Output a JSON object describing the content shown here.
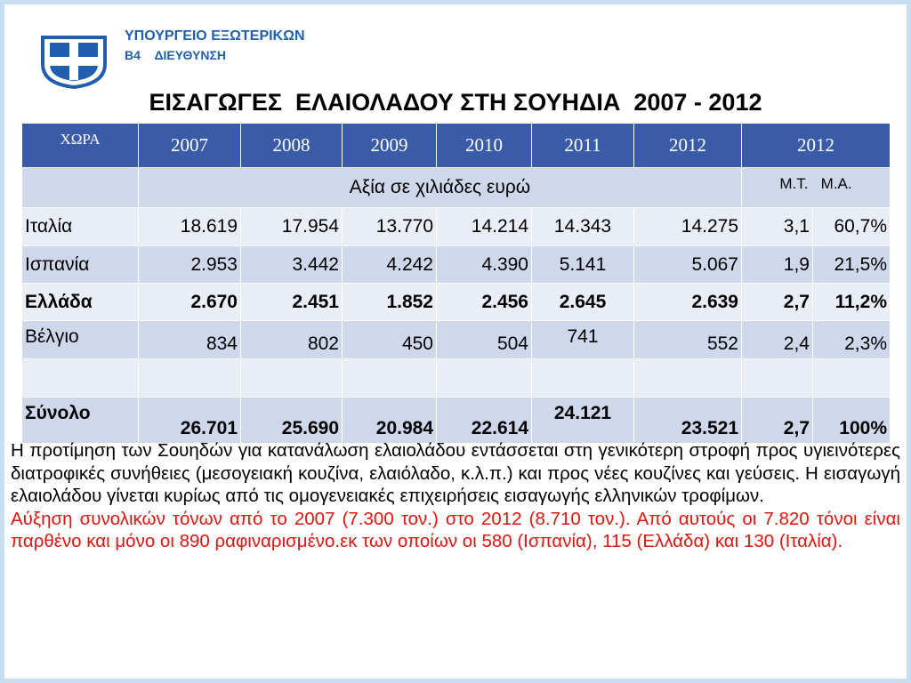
{
  "header": {
    "ministry": "ΥΠΟΥΡΓΕΙΟ ΕΞΩΤΕΡΙΚΩΝ",
    "department": "B4    ΔΙΕΥΘΥΝΣΗ"
  },
  "title": "ΕΙΣΑΓΩΓΕΣ  ΕΛΑΙΟΛΑΔΟΥ ΣΤΗ ΣΟΥΗΔΙΑ  2007 - 2012",
  "table": {
    "header": [
      "ΧΩΡΑ",
      "2007",
      "2008",
      "2009",
      "2010",
      "2011",
      "2012",
      "2012"
    ],
    "subheader": [
      "Αξία  σε  χιλιάδες  ευρώ",
      "Μ.Τ.   Μ.Α."
    ],
    "rows": [
      [
        "Ιταλία",
        "18.619",
        "17.954",
        "13.770",
        "14.214",
        "14.343",
        "14.275",
        "3,1",
        "60,7%"
      ],
      [
        "Ισπανία",
        "2.953",
        "3.442",
        "4.242",
        "4.390",
        "5.141",
        "5.067",
        "1,9",
        "21,5%"
      ],
      [
        "Ελλάδα",
        "2.670",
        "2.451",
        "1.852",
        "2.456",
        "2.645",
        "2.639",
        "2,7",
        "11,2%"
      ],
      [
        "Βέλγιο",
        "834",
        "802",
        "450",
        "504",
        "741",
        "552",
        "2,4",
        "2,3%"
      ],
      [
        "Σύνολο",
        "26.701",
        "25.690",
        "20.984",
        "22.614",
        "24.121",
        "23.521",
        "2,7",
        "100%"
      ]
    ]
  },
  "body": {
    "paragraphs": [
      "Η προτίμηση των Σουηδών για κατανάλωση ελαιολάδου εντάσσεται στη γενικότερη στροφή προς υγιεινότερες διατροφικές συνήθειες (μεσογειακή κουζίνα, ελαιόλαδο, κ.λ.π.) και προς νέες κουζίνες και γεύσεις. Η εισαγωγή ελαιολάδου γίνεται κυρίως από τις ομογενειακές επιχειρήσεις εισαγωγής ελληνικών τροφίμων.",
      "Αύξηση συνολικών τόνων από το 2007 (7.300 τον.) στο 2012 (8.710 τον.). Από αυτούς οι 7.820 τόνοι είναι παρθένο και μόνο οι 890 ραφιναρισμένο.εκ των οποίων οι 580 (Ισπανία), 115 (Ελλάδα) και 130 (Ιταλία)."
    ]
  }
}
